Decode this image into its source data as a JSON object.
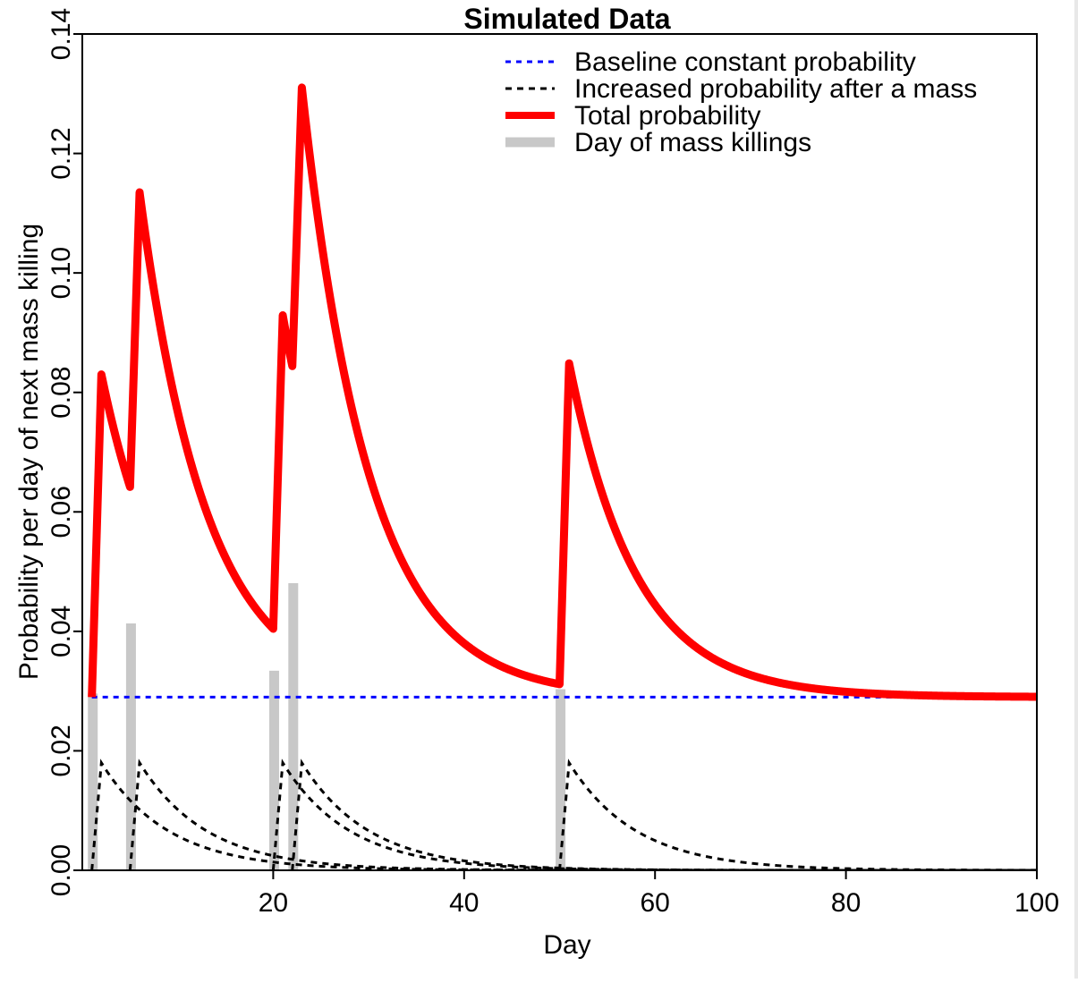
{
  "chart_data": {
    "type": "line",
    "title": "Simulated Data",
    "xlabel": "Day",
    "ylabel": "Probability per day of next mass killing",
    "xlim": [
      0,
      100
    ],
    "ylim": [
      0,
      0.14
    ],
    "x_ticks": [
      20,
      40,
      60,
      80,
      100
    ],
    "x_tick_labels": [
      "20",
      "40",
      "60",
      "80",
      "100"
    ],
    "y_ticks": [
      0,
      0.02,
      0.04,
      0.06,
      0.08,
      0.1,
      0.12,
      0.14
    ],
    "y_tick_labels": [
      "0.00",
      "0.02",
      "0.04",
      "0.06",
      "0.08",
      "0.10",
      "0.12",
      "0.14"
    ],
    "baseline": 0.029,
    "kick": 0.018,
    "decay_days": 7,
    "event_days": [
      1,
      5,
      20,
      22,
      50
    ],
    "series": [
      {
        "name": "Baseline constant probability",
        "style": "dotted",
        "color": "#0000ff"
      },
      {
        "name": "Increased probability after a mass",
        "style": "dashed",
        "color": "#000000"
      },
      {
        "name": "Total probability",
        "style": "solid",
        "color": "#ff0000"
      },
      {
        "name": "Day of mass killings",
        "style": "solid-thick",
        "color": "#c8c8c8"
      }
    ],
    "legend_position": "top-right",
    "grid": false
  }
}
